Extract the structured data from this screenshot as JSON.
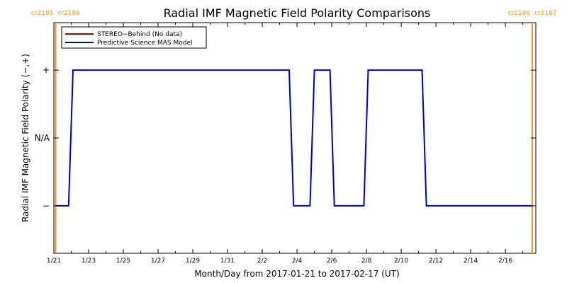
{
  "chart_data": {
    "type": "line",
    "title": "Radial IMF Magnetic Field Polarity Comparisons",
    "xlabel": "Month/Day from 2017-01-21 to 2017-02-17 (UT)",
    "ylabel": "Radial IMF Magnetic Field Polarity (−,+)",
    "x_start_date": "2017-01-21",
    "xlim_days": [
      0,
      27.75
    ],
    "ylim": [
      -1.7,
      1.7
    ],
    "x_ticks": [
      {
        "day": 0,
        "label": "1/21"
      },
      {
        "day": 2,
        "label": "1/23"
      },
      {
        "day": 4,
        "label": "1/25"
      },
      {
        "day": 6,
        "label": "1/27"
      },
      {
        "day": 8,
        "label": "1/29"
      },
      {
        "day": 10,
        "label": "1/31"
      },
      {
        "day": 12,
        "label": "2/2"
      },
      {
        "day": 14,
        "label": "2/4"
      },
      {
        "day": 16,
        "label": "2/6"
      },
      {
        "day": 18,
        "label": "2/8"
      },
      {
        "day": 20,
        "label": "2/10"
      },
      {
        "day": 22,
        "label": "2/12"
      },
      {
        "day": 24,
        "label": "2/14"
      },
      {
        "day": 26,
        "label": "2/16"
      }
    ],
    "y_ticks": [
      {
        "value": 1,
        "label": "+"
      },
      {
        "value": 0,
        "label": "N/A"
      },
      {
        "value": -1,
        "label": "−"
      }
    ],
    "legend": {
      "placement": "top-left",
      "entries": [
        {
          "label": "STEREO−Behind (No data)",
          "color": "#b00000"
        },
        {
          "label": "Predictive Science MAS Model",
          "color": "#0000c8"
        }
      ]
    },
    "series": [
      {
        "name": "STEREO−Behind (No data)",
        "color": "#b00000",
        "x": [],
        "y": []
      },
      {
        "name": "Predictive Science MAS Model",
        "color": "#0000c8",
        "x": [
          0.1,
          0.85,
          1.1,
          13.55,
          13.8,
          14.75,
          15.0,
          15.9,
          16.15,
          17.85,
          18.1,
          21.2,
          21.45,
          27.55
        ],
        "y": [
          -1,
          -1,
          1,
          1,
          -1,
          -1,
          1,
          1,
          -1,
          -1,
          1,
          1,
          -1,
          -1
        ]
      }
    ],
    "carrington_markers": [
      {
        "day": 0.1,
        "left_label": "cr2185",
        "right_label": "cr2186",
        "color": "#f7941d"
      },
      {
        "day": 27.55,
        "left_label": "cr2186",
        "right_label": "cr2187",
        "color": "#f7941d"
      }
    ],
    "grid": false
  }
}
